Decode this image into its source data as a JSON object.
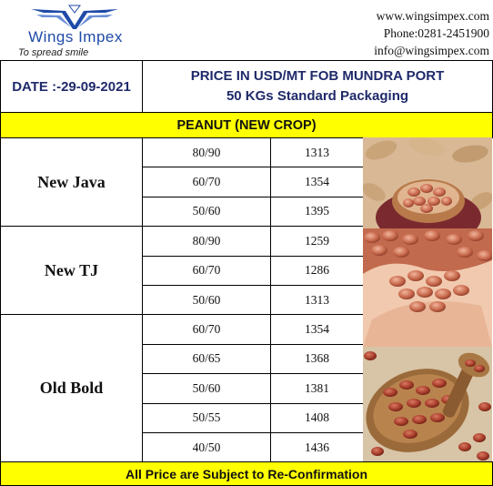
{
  "brand": {
    "name": "Wings Impex",
    "tagline": "To spread smile"
  },
  "contact": {
    "website": "www.wingsimpex.com",
    "phone": "Phone:0281-2451900",
    "email": "info@wingsimpex.com"
  },
  "date_label": "DATE :-29-09-2021",
  "title": {
    "line1": "PRICE IN USD/MT FOB MUNDRA PORT",
    "line2": "50 KGs Standard Packaging"
  },
  "product": "PEANUT (NEW CROP)",
  "groups": [
    {
      "name": "New Java",
      "rows": [
        {
          "count": "80/90",
          "price": "1313"
        },
        {
          "count": "60/70",
          "price": "1354"
        },
        {
          "count": "50/60",
          "price": "1395"
        }
      ]
    },
    {
      "name": "New TJ",
      "rows": [
        {
          "count": "80/90",
          "price": "1259"
        },
        {
          "count": "60/70",
          "price": "1286"
        },
        {
          "count": "50/60",
          "price": "1313"
        }
      ]
    },
    {
      "name": "Old Bold",
      "rows": [
        {
          "count": "60/70",
          "price": "1354"
        },
        {
          "count": "60/65",
          "price": "1368"
        },
        {
          "count": "50/60",
          "price": "1381"
        },
        {
          "count": "50/55",
          "price": "1408"
        },
        {
          "count": "40/50",
          "price": "1436"
        }
      ]
    }
  ],
  "footer": "All Price are Subject to Re-Confirmation",
  "colors": {
    "highlight": "#ffff00",
    "title_text": "#1f2a6a",
    "logo_blue": "#1f4aa8"
  },
  "icons": [
    "wings-logo-icon",
    "peanut-photo"
  ]
}
